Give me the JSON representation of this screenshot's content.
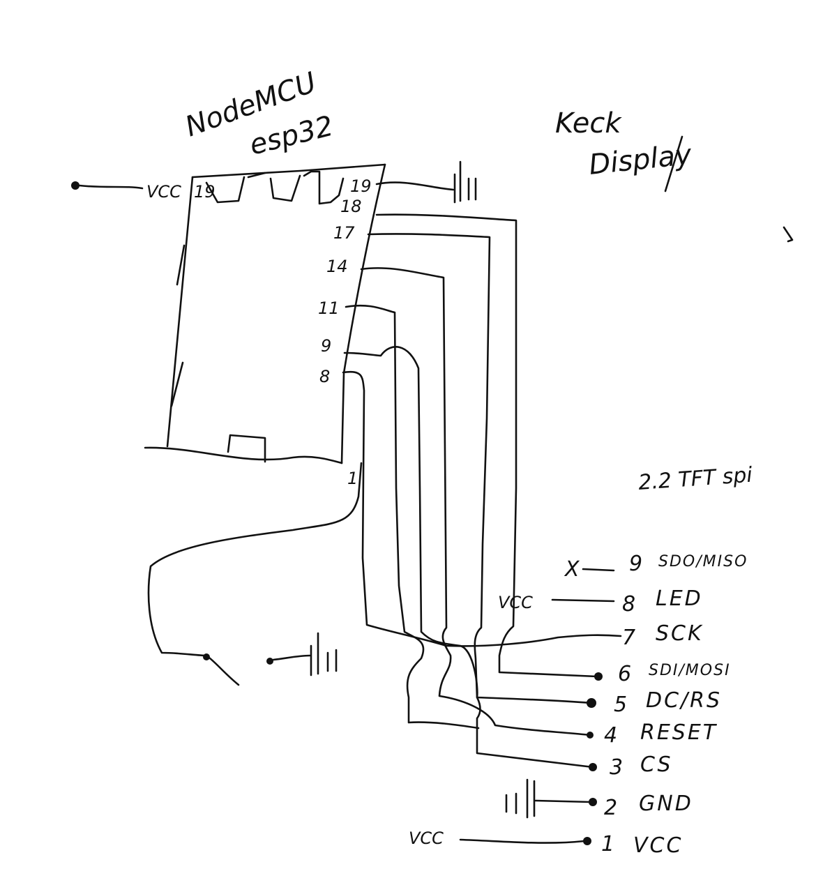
{
  "board": {
    "title_line1": "NodeMCU",
    "title_line2": "esp32",
    "top_left_pin": "19",
    "right_pins": [
      "19",
      "18",
      "17",
      "14",
      "11",
      "9",
      "8",
      "1"
    ],
    "vcc_label": "VCC"
  },
  "display": {
    "title_line1": "Keck",
    "title_line2": "Display",
    "model": "2.2 TFT spi",
    "pins": [
      {
        "number": "9",
        "label": "SDO/MISO"
      },
      {
        "number": "8",
        "label": "LED"
      },
      {
        "number": "7",
        "label": "SCK"
      },
      {
        "number": "6",
        "label": "SDI/MOSI"
      },
      {
        "number": "5",
        "label": "DC/RS"
      },
      {
        "number": "4",
        "label": "RESET"
      },
      {
        "number": "3",
        "label": "CS"
      },
      {
        "number": "2",
        "label": "GND"
      },
      {
        "number": "1",
        "label": "VCC"
      }
    ],
    "nc_mark": "X",
    "led_vcc_label": "VCC",
    "vcc_label": "VCC"
  }
}
